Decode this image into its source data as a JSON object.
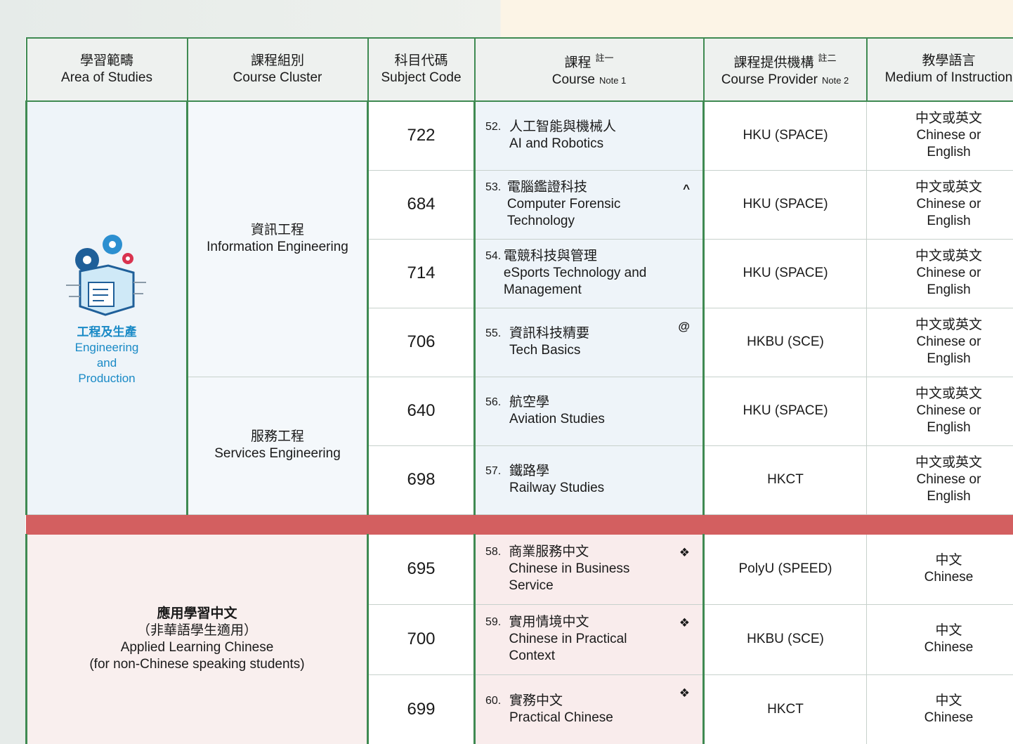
{
  "header": [
    {
      "zh": "學習範疇",
      "en": "Area of Studies"
    },
    {
      "zh": "課程組別",
      "en": "Course Cluster"
    },
    {
      "zh": "科目代碼",
      "en": "Subject Code"
    },
    {
      "zh": "課程",
      "en": "Course",
      "note_zh": "註一",
      "note_en": "Note 1"
    },
    {
      "zh": "課程提供機構",
      "en": "Course Provider",
      "note_zh": "註二",
      "note_en": "Note 2"
    },
    {
      "zh": "教學語言",
      "en": "Medium of Instruction"
    }
  ],
  "sections": [
    {
      "area": {
        "zh": "工程及生產",
        "en": "Engineering and Production"
      },
      "clusters": [
        {
          "zh": "資訊工程",
          "en": "Information Engineering",
          "rows": 4
        },
        {
          "zh": "服務工程",
          "en": "Services Engineering",
          "rows": 2
        }
      ],
      "rows": [
        {
          "code": "722",
          "number": "52.",
          "zh": "人工智能與機械人",
          "en": "AI and Robotics",
          "provider": "HKU (SPACE)",
          "medium_zh": "中文或英文",
          "medium_en": "Chinese or English"
        },
        {
          "code": "684",
          "number": "53.",
          "zh": "電腦鑑證科技",
          "en": "Computer Forensic Technology",
          "symbol": "^",
          "provider": "HKU (SPACE)",
          "medium_zh": "中文或英文",
          "medium_en": "Chinese or English"
        },
        {
          "code": "714",
          "number": "54.",
          "zh": "電競科技與管理",
          "en": "eSports Technology and Management",
          "provider": "HKU (SPACE)",
          "medium_zh": "中文或英文",
          "medium_en": "Chinese or English"
        },
        {
          "code": "706",
          "number": "55.",
          "zh": "資訊科技精要",
          "en": "Tech Basics",
          "symbol": "@",
          "provider": "HKBU (SCE)",
          "medium_zh": "中文或英文",
          "medium_en": "Chinese or English"
        },
        {
          "code": "640",
          "number": "56.",
          "zh": "航空學",
          "en": "Aviation Studies",
          "provider": "HKU (SPACE)",
          "medium_zh": "中文或英文",
          "medium_en": "Chinese or English"
        },
        {
          "code": "698",
          "number": "57.",
          "zh": "鐵路學",
          "en": "Railway Studies",
          "provider": "HKCT",
          "medium_zh": "中文或英文",
          "medium_en": "Chinese or English"
        }
      ]
    },
    {
      "area": {
        "zh": "應用學習中文",
        "zh_note": "（非華語學生適用）",
        "en": "Applied Learning Chinese",
        "en_note": "(for non-Chinese speaking students)"
      },
      "rows": [
        {
          "code": "695",
          "number": "58.",
          "zh": "商業服務中文",
          "en": "Chinese in Business Service",
          "symbol": "❖",
          "provider": "PolyU (SPEED)",
          "medium_zh": "中文",
          "medium_en": "Chinese"
        },
        {
          "code": "700",
          "number": "59.",
          "zh": "實用情境中文",
          "en": "Chinese in Practical Context",
          "symbol": "❖",
          "provider": "HKBU (SCE)",
          "medium_zh": "中文",
          "medium_en": "Chinese"
        },
        {
          "code": "699",
          "number": "60.",
          "zh": "實務中文",
          "en": "Practical Chinese",
          "symbol": "❖",
          "provider": "HKCT",
          "medium_zh": "中文",
          "medium_en": "Chinese"
        }
      ]
    }
  ]
}
